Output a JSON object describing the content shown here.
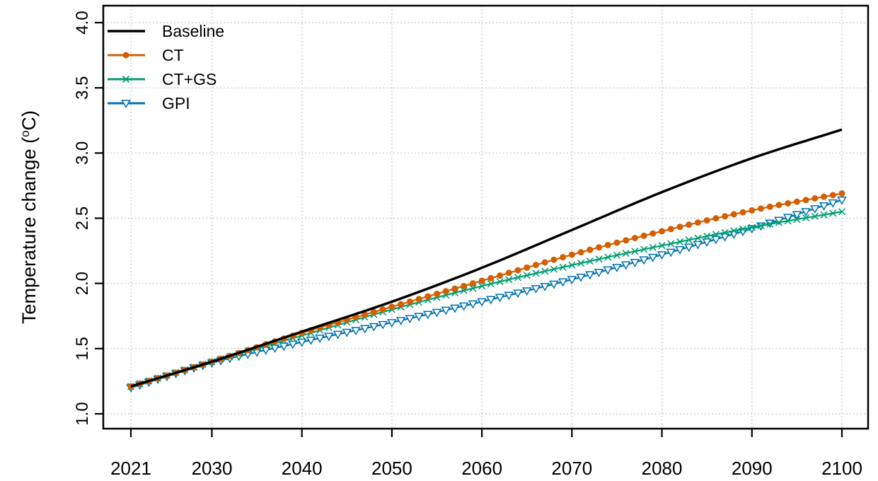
{
  "chart_data": {
    "type": "line",
    "ylabel": "Temperature change",
    "ylabel_unit_sup": "o",
    "ylabel_unit_suffix": "C)",
    "ylabel_unit_prefix": "(",
    "xlim": [
      2021,
      2100
    ],
    "ylim": [
      0.9,
      4.05
    ],
    "x_ticks": [
      2021,
      2030,
      2040,
      2050,
      2060,
      2070,
      2080,
      2090,
      2100
    ],
    "y_ticks": [
      "1.0",
      "1.5",
      "2.0",
      "2.5",
      "3.0",
      "3.5",
      "4.0"
    ],
    "grid": true,
    "legend_position": "top-left",
    "x_keypoints": [
      2021,
      2030,
      2040,
      2050,
      2060,
      2070,
      2080,
      2090,
      2100
    ],
    "series": [
      {
        "name": "Baseline",
        "color": "#000000",
        "marker": "none",
        "values": [
          1.21,
          1.4,
          1.63,
          1.86,
          2.12,
          2.41,
          2.7,
          2.96,
          3.18
        ]
      },
      {
        "name": "CT",
        "color": "#D55E00",
        "marker": "dot",
        "values": [
          1.21,
          1.4,
          1.62,
          1.82,
          2.02,
          2.22,
          2.4,
          2.56,
          2.69
        ]
      },
      {
        "name": "CT+GS",
        "color": "#009E73",
        "marker": "x",
        "values": [
          1.21,
          1.4,
          1.6,
          1.8,
          1.98,
          2.14,
          2.29,
          2.43,
          2.55
        ]
      },
      {
        "name": "GPI",
        "color": "#0072B2",
        "marker": "triangle-down",
        "values": [
          1.2,
          1.39,
          1.55,
          1.7,
          1.86,
          2.03,
          2.22,
          2.42,
          2.64
        ]
      }
    ]
  }
}
